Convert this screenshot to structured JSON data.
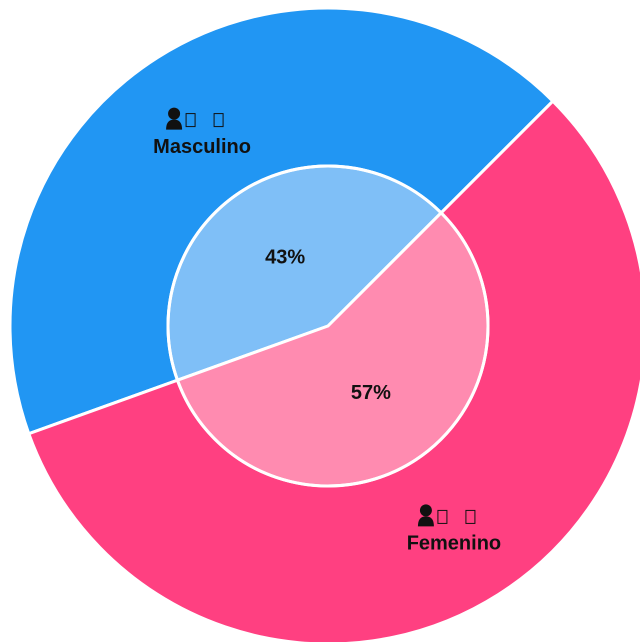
{
  "chart_data": {
    "type": "pie",
    "categories": [
      "Masculino",
      "Femenino"
    ],
    "values": [
      43,
      57
    ],
    "value_labels": [
      "43%",
      "57%"
    ],
    "colors": [
      "#2196f3",
      "#ff4081"
    ],
    "inner_colors": [
      "#7fbff7",
      "#ff8bb0"
    ]
  }
}
